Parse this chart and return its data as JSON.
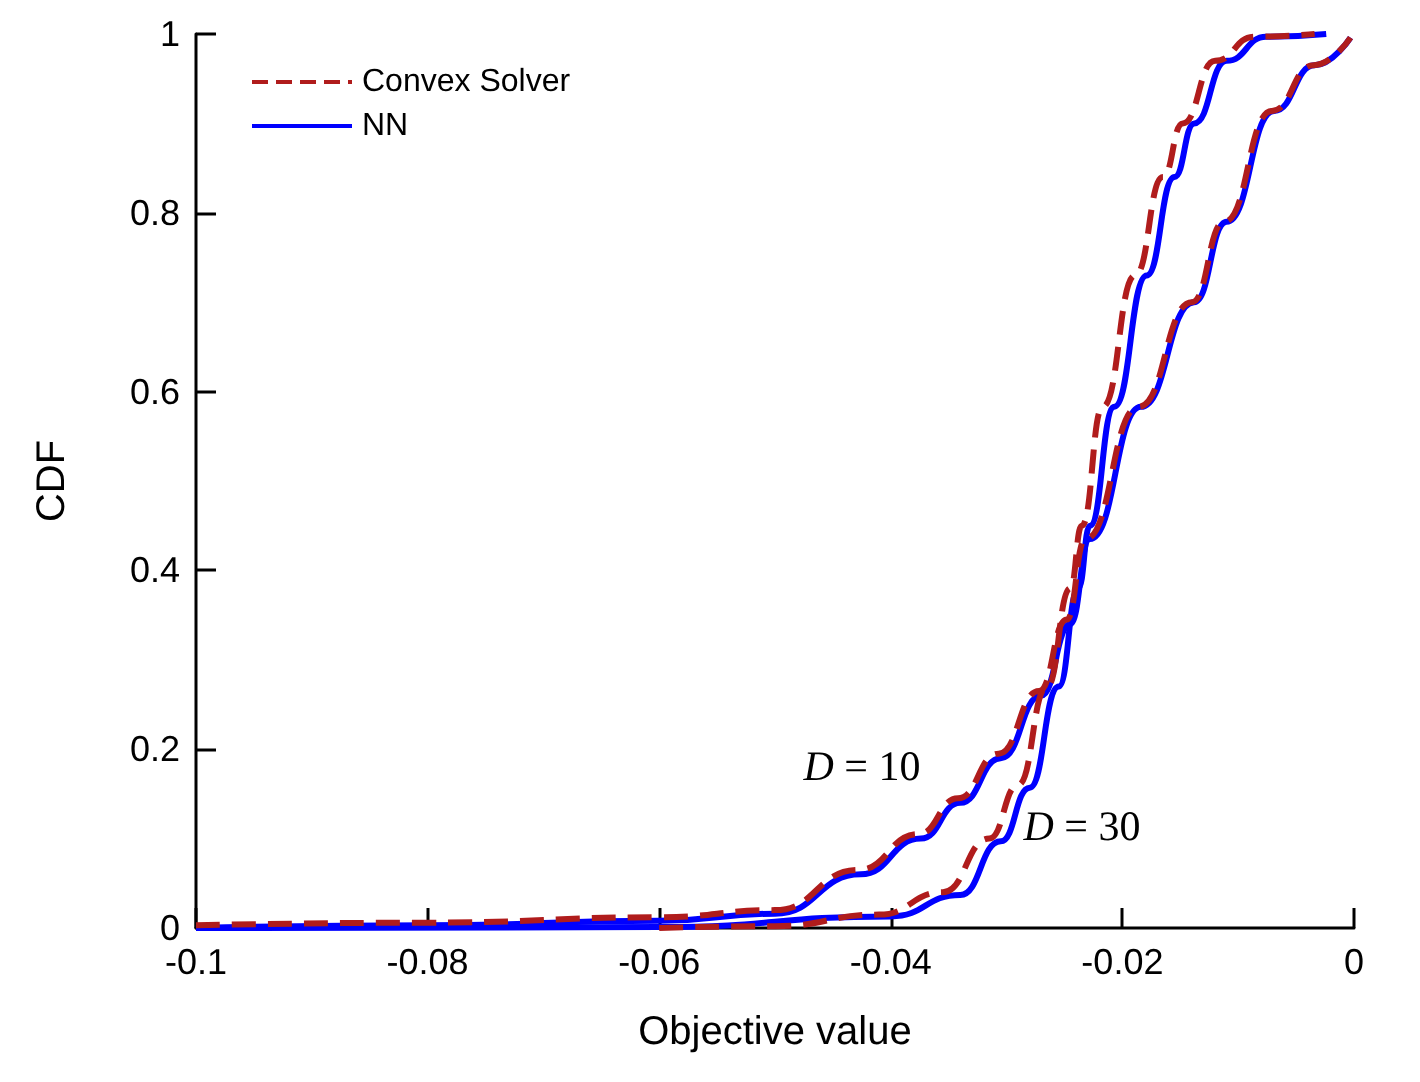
{
  "chart_data": {
    "type": "line",
    "xlabel": "Objective value",
    "ylabel": "CDF",
    "xlim": [
      -0.1,
      0
    ],
    "ylim": [
      0,
      1
    ],
    "xticks": [
      -0.1,
      -0.08,
      -0.06,
      -0.04,
      -0.02,
      0
    ],
    "yticks": [
      0,
      0.2,
      0.4,
      0.6,
      0.8,
      1
    ],
    "grid": false,
    "legend": "top left",
    "marker": "none",
    "annotations": [
      "D = 10",
      "D = 30"
    ],
    "series": [
      {
        "name": "Convex Solver",
        "color": "#b01c1c",
        "line_style": "dashed",
        "x": [
          -0.1,
          -0.08,
          -0.06,
          -0.05,
          -0.0428,
          -0.0376,
          -0.0342,
          -0.0307,
          -0.0272,
          -0.0248,
          -0.0232,
          -0.0186,
          -0.014,
          -0.0112,
          -0.0071,
          -0.0035,
          -0.0003
        ],
        "values": [
          0.003,
          0.006,
          0.012,
          0.02,
          0.065,
          0.105,
          0.145,
          0.195,
          0.265,
          0.345,
          0.435,
          0.583,
          0.7,
          0.79,
          0.914,
          0.965,
          0.996
        ]
      },
      {
        "name": "NN",
        "color": "#0000ff",
        "line_style": "solid",
        "x": [
          -0.1,
          -0.08,
          -0.06,
          -0.05,
          -0.0426,
          -0.0374,
          -0.034,
          -0.0305,
          -0.027,
          -0.0245,
          -0.0228,
          -0.0184,
          -0.0138,
          -0.011,
          -0.0069,
          -0.0034,
          -0.0003
        ],
        "values": [
          0,
          0.003,
          0.008,
          0.016,
          0.06,
          0.1,
          0.14,
          0.19,
          0.26,
          0.34,
          0.435,
          0.583,
          0.7,
          0.79,
          0.914,
          0.965,
          0.996
        ]
      },
      {
        "color": "#b01c1c",
        "line_style": "dashed",
        "x": [
          -0.06,
          -0.05,
          -0.041,
          -0.0355,
          -0.0315,
          -0.029,
          -0.0265,
          -0.0245,
          -0.0235,
          -0.0217,
          -0.0189,
          -0.0165,
          -0.0148,
          -0.012,
          -0.0086,
          -0.0034
        ],
        "values": [
          0,
          0.002,
          0.015,
          0.04,
          0.1,
          0.16,
          0.27,
          0.38,
          0.45,
          0.583,
          0.73,
          0.84,
          0.9,
          0.97,
          0.997,
          1
        ]
      },
      {
        "color": "#0000ff",
        "line_style": "solid",
        "x": [
          -0.1,
          -0.06,
          -0.04,
          -0.034,
          -0.0305,
          -0.028,
          -0.0255,
          -0.0238,
          -0.0228,
          -0.0207,
          -0.0179,
          -0.0155,
          -0.0138,
          -0.011,
          -0.0076,
          -0.0024
        ],
        "values": [
          0,
          0.001,
          0.013,
          0.037,
          0.097,
          0.157,
          0.27,
          0.38,
          0.45,
          0.583,
          0.73,
          0.84,
          0.9,
          0.97,
          0.997,
          1
        ]
      }
    ]
  }
}
